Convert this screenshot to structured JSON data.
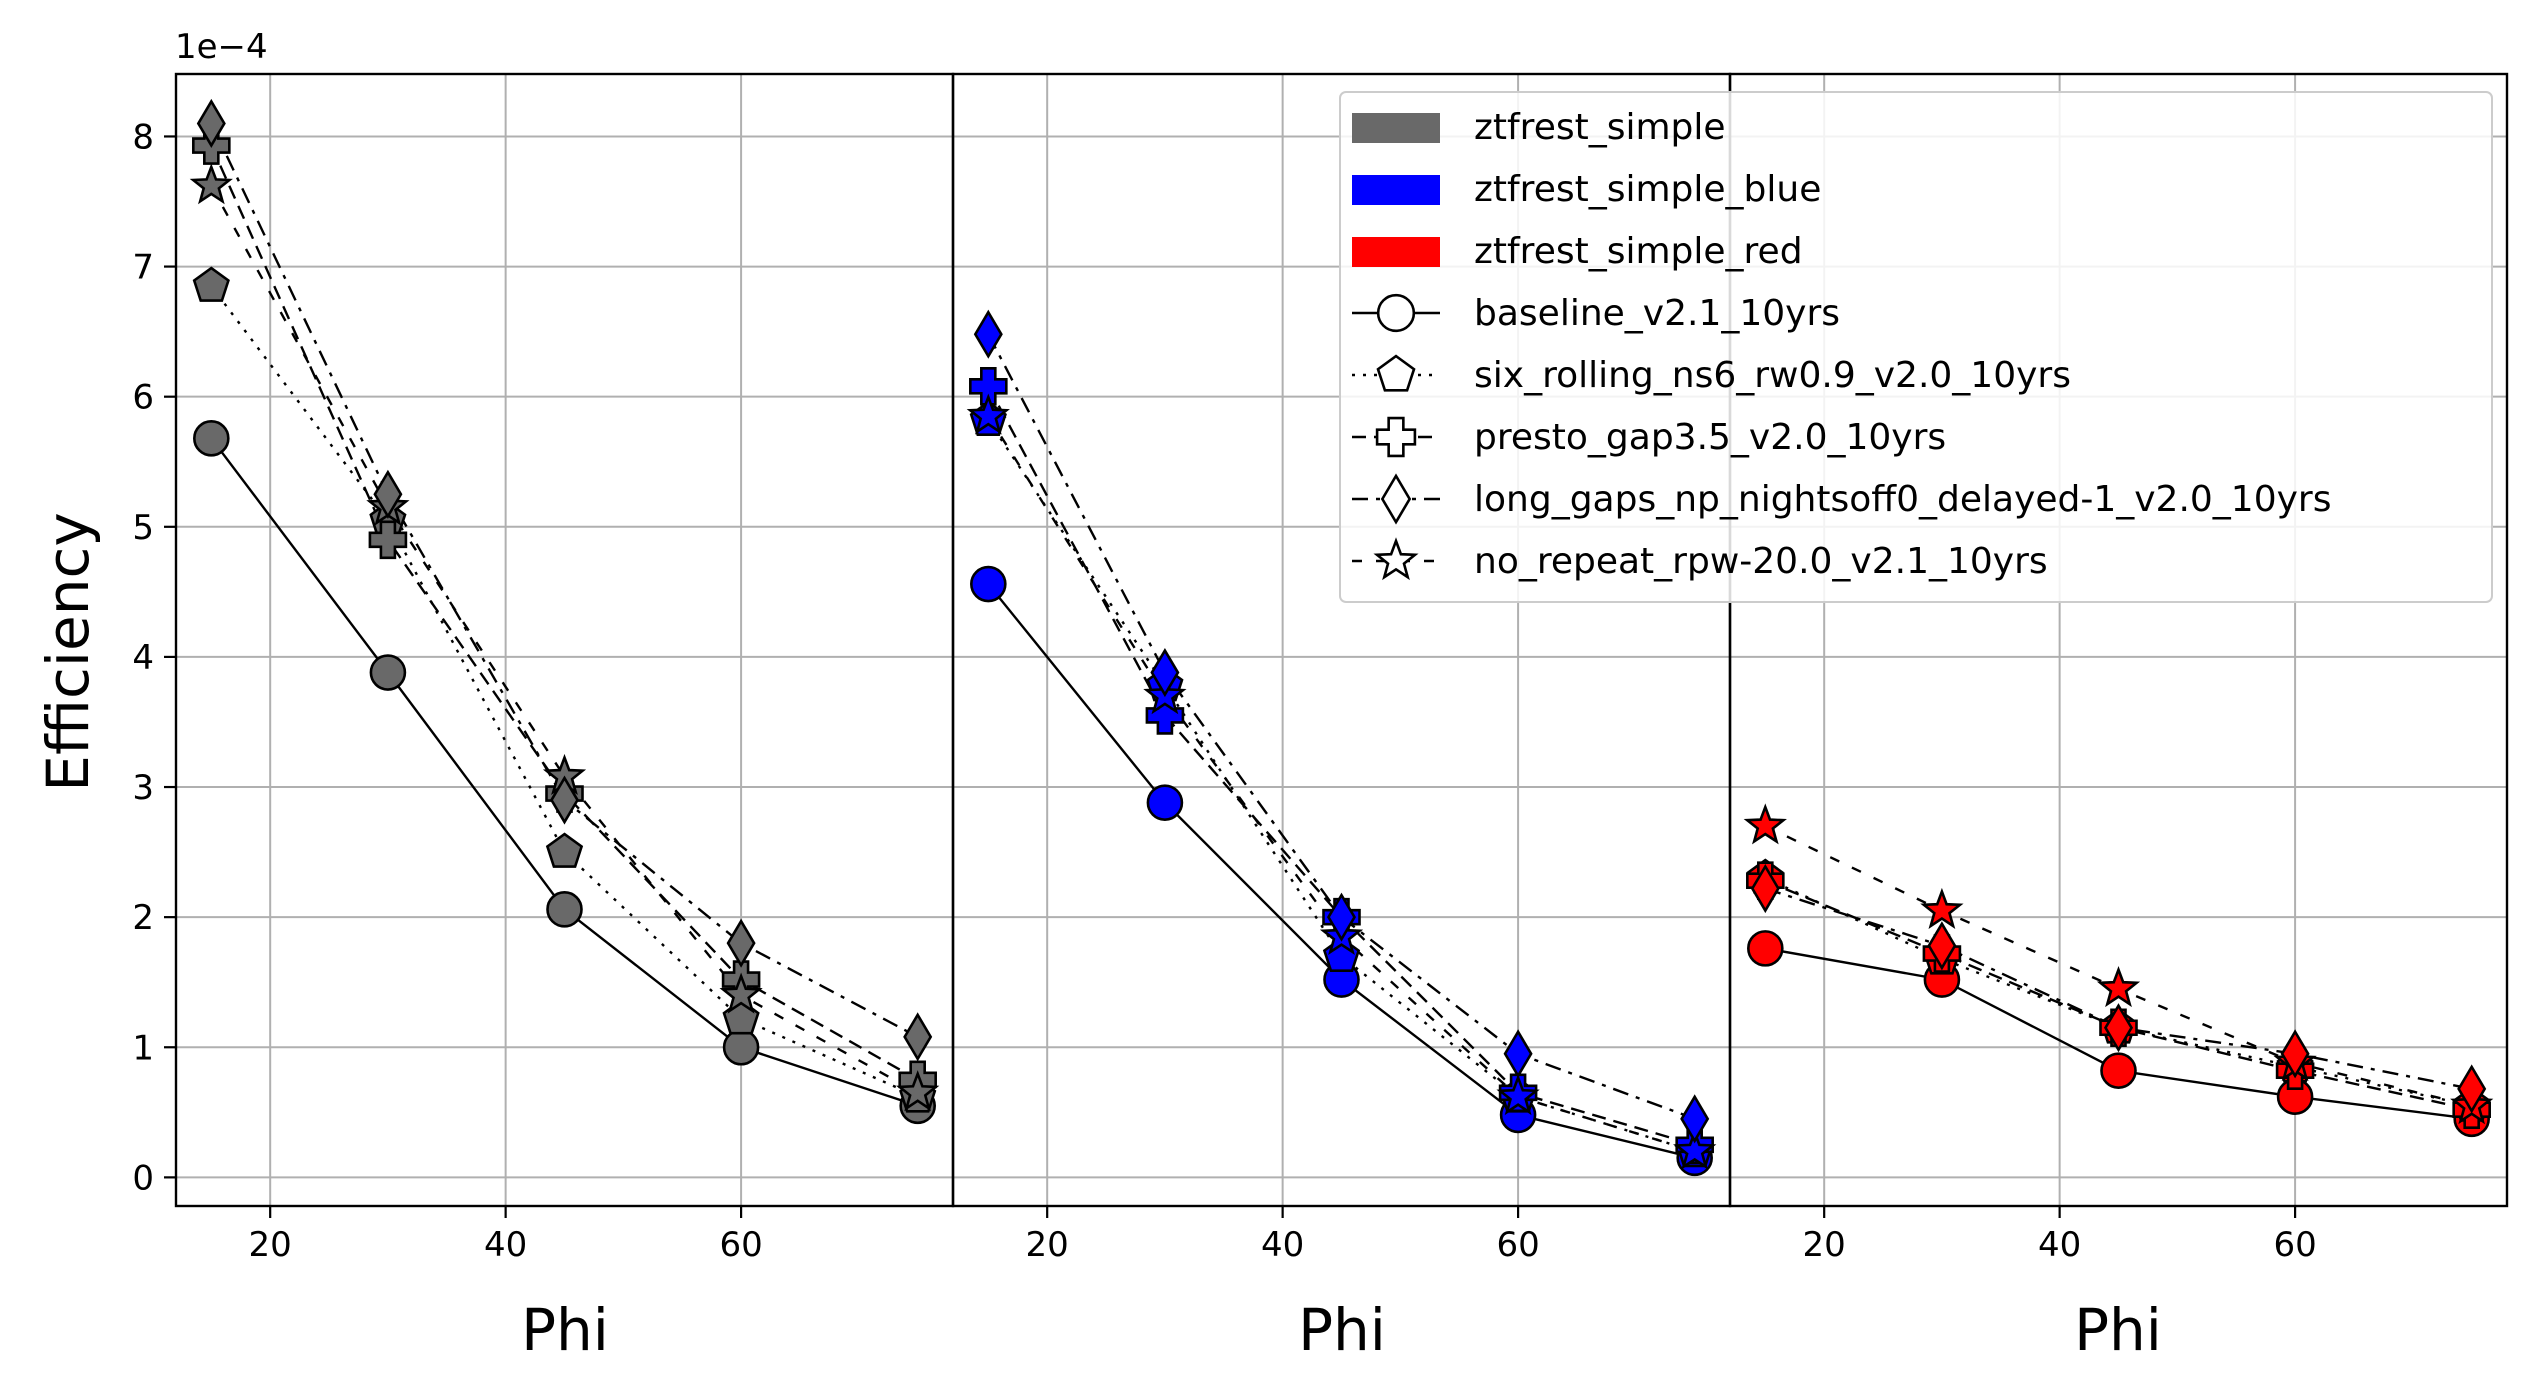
{
  "chart_data": {
    "type": "line",
    "ylabel": "Efficiency",
    "y_offset_label": "1e−4",
    "ylim": [
      -0.22,
      8.48
    ],
    "yticks": [
      0,
      1,
      2,
      3,
      4,
      5,
      6,
      7,
      8
    ],
    "ytick_labels": [
      "0",
      "1",
      "2",
      "3",
      "4",
      "5",
      "6",
      "7",
      "8"
    ],
    "xlim": [
      12,
      78
    ],
    "xticks": [
      20,
      40,
      60
    ],
    "xtick_labels": [
      "20",
      "40",
      "60"
    ],
    "x": [
      15,
      30,
      45,
      60,
      75
    ],
    "grid": true,
    "legend_position": "upper right of third panel",
    "styles": [
      {
        "name": "baseline_v2.1_10yrs",
        "marker": "circle",
        "dash": "solid"
      },
      {
        "name": "six_rolling_ns6_rw0.9_v2.0_10yrs",
        "marker": "pentagon",
        "dash": "dotted"
      },
      {
        "name": "presto_gap3.5_v2.0_10yrs",
        "marker": "plus",
        "dash": "dashed"
      },
      {
        "name": "long_gaps_np_nightsoff0_delayed-1_v2.0_10yrs",
        "marker": "diamond",
        "dash": "dashdot"
      },
      {
        "name": "no_repeat_rpw-20.0_v2.1_10yrs",
        "marker": "star",
        "dash": "loosedash"
      }
    ],
    "panels": [
      {
        "name": "ztfrest_simple",
        "color": "#696969",
        "xlabel": "Phi",
        "series": [
          {
            "name": "baseline_v2.1_10yrs",
            "values": [
              5.68,
              3.88,
              2.06,
              1.0,
              0.55
            ]
          },
          {
            "name": "six_rolling_ns6_rw0.9_v2.0_10yrs",
            "values": [
              6.85,
              5.05,
              2.5,
              1.22,
              0.62
            ]
          },
          {
            "name": "presto_gap3.5_v2.0_10yrs",
            "values": [
              7.93,
              4.9,
              2.95,
              1.52,
              0.75
            ]
          },
          {
            "name": "long_gaps_np_nightsoff0_delayed-1_v2.0_10yrs",
            "values": [
              8.1,
              5.25,
              2.9,
              1.8,
              1.08
            ]
          },
          {
            "name": "no_repeat_rpw-20.0_v2.1_10yrs",
            "values": [
              7.62,
              5.15,
              3.08,
              1.4,
              0.65
            ]
          }
        ]
      },
      {
        "name": "ztfrest_simple_blue",
        "color": "#0000ff",
        "xlabel": "Phi",
        "series": [
          {
            "name": "baseline_v2.1_10yrs",
            "values": [
              4.56,
              2.88,
              1.52,
              0.48,
              0.15
            ]
          },
          {
            "name": "six_rolling_ns6_rw0.9_v2.0_10yrs",
            "values": [
              5.82,
              3.78,
              1.7,
              0.62,
              0.2
            ]
          },
          {
            "name": "presto_gap3.5_v2.0_10yrs",
            "values": [
              6.08,
              3.55,
              2.0,
              0.65,
              0.25
            ]
          },
          {
            "name": "long_gaps_np_nightsoff0_delayed-1_v2.0_10yrs",
            "values": [
              6.48,
              3.88,
              2.0,
              0.95,
              0.45
            ]
          },
          {
            "name": "no_repeat_rpw-20.0_v2.1_10yrs",
            "values": [
              5.85,
              3.7,
              1.85,
              0.62,
              0.2
            ]
          }
        ]
      },
      {
        "name": "ztfrest_simple_red",
        "color": "#ff0000",
        "xlabel": "Phi",
        "series": [
          {
            "name": "baseline_v2.1_10yrs",
            "values": [
              1.76,
              1.52,
              0.82,
              0.62,
              0.45
            ]
          },
          {
            "name": "six_rolling_ns6_rw0.9_v2.0_10yrs",
            "values": [
              2.3,
              1.68,
              1.15,
              0.85,
              0.55
            ]
          },
          {
            "name": "presto_gap3.5_v2.0_10yrs",
            "values": [
              2.28,
              1.72,
              1.15,
              0.82,
              0.52
            ]
          },
          {
            "name": "long_gaps_np_nightsoff0_delayed-1_v2.0_10yrs",
            "values": [
              2.22,
              1.78,
              1.15,
              0.95,
              0.68
            ]
          },
          {
            "name": "no_repeat_rpw-20.0_v2.1_10yrs",
            "values": [
              2.7,
              2.05,
              1.45,
              0.88,
              0.55
            ]
          }
        ]
      }
    ]
  }
}
